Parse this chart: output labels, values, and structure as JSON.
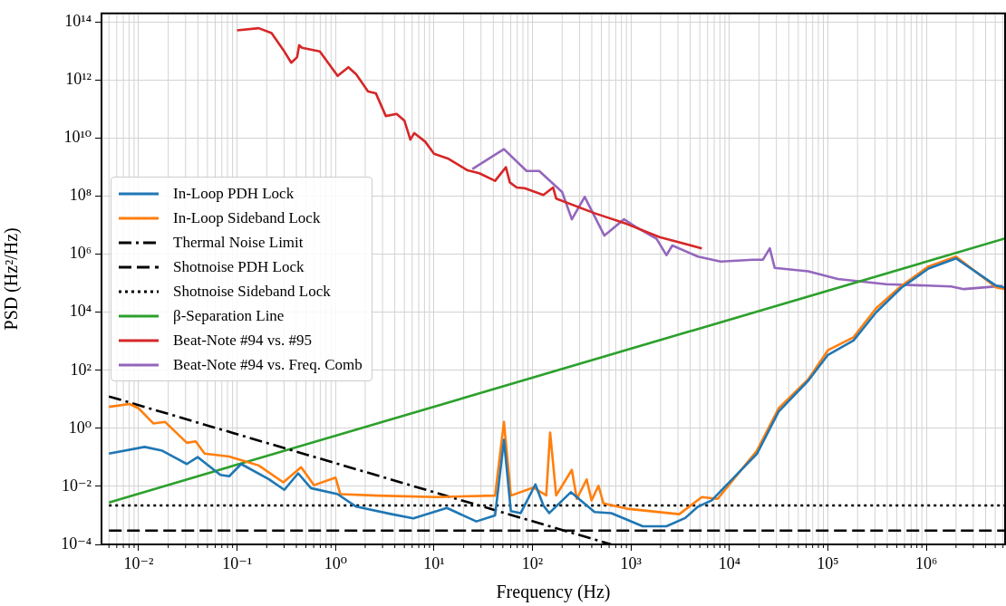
{
  "chart_data": {
    "type": "line",
    "xlabel": "Frequency (Hz)",
    "ylabel": "PSD (Hz²/Hz)",
    "log": "xy",
    "grid": true,
    "legend": "center left",
    "xlim": [
      0.0042,
      6300000.0
    ],
    "ylim": [
      0.0001,
      200000000000000.0
    ],
    "xticks": [
      {
        "value": 0.01,
        "label": "10⁻²"
      },
      {
        "value": 0.1,
        "label": "10⁻¹"
      },
      {
        "value": 1,
        "label": "10⁰"
      },
      {
        "value": 10,
        "label": "10¹"
      },
      {
        "value": 100,
        "label": "10²"
      },
      {
        "value": 1000,
        "label": "10³"
      },
      {
        "value": 10000,
        "label": "10⁴"
      },
      {
        "value": 100000,
        "label": "10⁵"
      },
      {
        "value": 1000000,
        "label": "10⁶"
      }
    ],
    "yticks": [
      {
        "value": 0.0001,
        "label": "10⁻⁴"
      },
      {
        "value": 0.01,
        "label": "10⁻²"
      },
      {
        "value": 1,
        "label": "10⁰"
      },
      {
        "value": 100.0,
        "label": "10²"
      },
      {
        "value": 10000.0,
        "label": "10⁴"
      },
      {
        "value": 1000000.0,
        "label": "10⁶"
      },
      {
        "value": 100000000.0,
        "label": "10⁸"
      },
      {
        "value": 10000000000.0,
        "label": "10¹⁰"
      },
      {
        "value": 1000000000000.0,
        "label": "10¹²"
      },
      {
        "value": 100000000000000.0,
        "label": "10¹⁴"
      }
    ],
    "series": [
      {
        "name": "In-Loop PDH Lock",
        "color": "#1f77b4",
        "x": [
          0.005,
          0.0115,
          0.0174,
          0.0309,
          0.0398,
          0.0676,
          0.0832,
          0.11,
          0.209,
          0.302,
          0.417,
          0.562,
          1.05,
          1.62,
          3.72,
          6.17,
          13.5,
          26.9,
          41.7,
          51.3,
          60.3,
          75.9,
          107,
          129,
          148,
          245,
          427,
          631,
          1320,
          2290,
          3550,
          4790,
          6610,
          19100,
          31600,
          63100,
          100000,
          182000,
          309000,
          562000,
          1050000,
          2000000,
          5100000,
          6300000
        ],
        "values": [
          0.135,
          0.229,
          0.17,
          0.059,
          0.102,
          0.025,
          0.0224,
          0.059,
          0.0178,
          0.0076,
          0.0282,
          0.0087,
          0.0054,
          0.002,
          0.0011,
          0.00079,
          0.0018,
          0.00062,
          0.001,
          0.4,
          0.0014,
          0.0012,
          0.0117,
          0.0022,
          0.0012,
          0.0063,
          0.0013,
          0.0012,
          0.00042,
          0.00042,
          0.00081,
          0.002,
          0.0033,
          0.135,
          3.8,
          44,
          340,
          1070,
          10000,
          72000,
          320000,
          720000,
          83000,
          71000
        ]
      },
      {
        "name": "In-Loop Sideband Lock",
        "color": "#ff7f0e",
        "x": [
          0.005,
          0.0081,
          0.01,
          0.0141,
          0.0186,
          0.0309,
          0.038,
          0.0468,
          0.0832,
          0.166,
          0.295,
          0.447,
          0.603,
          1.0,
          1.12,
          2.63,
          10.7,
          41.7,
          51.3,
          60.3,
          102,
          138,
          151,
          174,
          251,
          282,
          355,
          398,
          468,
          525,
          912,
          3090,
          5250,
          7590,
          19100,
          31600,
          63100,
          100000,
          182000,
          309000,
          562000,
          1050000,
          2000000,
          5100000,
          6300000
        ],
        "values": [
          5.5,
          6.9,
          4.9,
          1.48,
          1.66,
          0.316,
          0.355,
          0.135,
          0.107,
          0.0525,
          0.0138,
          0.0457,
          0.011,
          0.02,
          0.0054,
          0.0048,
          0.0043,
          0.0048,
          1.66,
          0.0048,
          0.0091,
          0.0049,
          0.72,
          0.0049,
          0.037,
          0.0037,
          0.0174,
          0.0033,
          0.0105,
          0.0026,
          0.0017,
          0.0011,
          0.0043,
          0.0037,
          0.174,
          4.9,
          49,
          490,
          1380,
          13800,
          83000,
          380000,
          830000,
          72000,
          63000
        ]
      },
      {
        "name": "Thermal Noise Limit",
        "color": "#000000",
        "line_style": "dashdot",
        "x": [
          0.005,
          630
        ],
        "values": [
          12.6,
          0.0001
        ]
      },
      {
        "name": "Shotnoise PDH Lock",
        "color": "#000000",
        "line_style": "dashed",
        "x": [
          0.005,
          6300000
        ],
        "values": [
          0.0003,
          0.0003
        ]
      },
      {
        "name": "Shotnoise Sideband Lock",
        "color": "#000000",
        "line_style": "dotted",
        "x": [
          0.005,
          6300000
        ],
        "values": [
          0.0022,
          0.0022
        ]
      },
      {
        "name": "β-Separation Line",
        "color": "#2ca02c",
        "x": [
          0.005,
          6300000
        ],
        "values": [
          0.0028,
          3500000
        ]
      },
      {
        "name": "Beat-Note #94 vs. #95",
        "color": "#d62728",
        "x": [
          0.1,
          0.166,
          0.224,
          0.295,
          0.355,
          0.407,
          0.427,
          0.457,
          0.692,
          1.05,
          1.35,
          1.62,
          2.14,
          2.57,
          3.24,
          4.17,
          5.01,
          5.75,
          6.31,
          8.13,
          10,
          13.8,
          21.9,
          28.8,
          41.7,
          53.7,
          58.9,
          69.2,
          83.2,
          129,
          162,
          174,
          427,
          912,
          1950,
          5250
        ],
        "values": [
          52000000000000.0,
          62000000000000.0,
          42000000000000.0,
          11000000000000.0,
          4000000000000.0,
          6200000000000.0,
          16000000000000.0,
          13000000000000.0,
          9800000000000.0,
          1400000000000.0,
          2800000000000.0,
          1600000000000.0,
          410000000000.0,
          350000000000.0,
          58000000000.0,
          69000000000.0,
          40000000000.0,
          8900000000.0,
          15000000000.0,
          7600000000.0,
          2900000000.0,
          2000000000.0,
          780000000.0,
          620000000.0,
          340000000.0,
          1000000000.0,
          300000000.0,
          200000000.0,
          190000000.0,
          110000000.0,
          200000000.0,
          83000000.0,
          26000000.0,
          11000000.0,
          3900000.0,
          1600000.0
        ]
      },
      {
        "name": "Beat-Note #94 vs. Freq. Comb",
        "color": "#9467bd",
        "x": [
          24.5,
          51.3,
          87.1,
          117,
          200,
          251,
          339,
          537,
          851,
          1150,
          1820,
          2290,
          2630,
          4790,
          8130,
          17400,
          21900,
          25700,
          28800,
          63100,
          126000,
          389000,
          1780000,
          2400000,
          5900000
        ],
        "values": [
          870000000.0,
          4200000000.0,
          740000000.0,
          740000000.0,
          140000000.0,
          16000000.0,
          95000000.0,
          4400000.0,
          16000000.0,
          8300000.0,
          3400000.0,
          930000.0,
          2000000.0,
          830000.0,
          560000.0,
          650000.0,
          650000.0,
          1600000.0,
          340000.0,
          260000.0,
          140000.0,
          93000.0,
          78000.0,
          63000.0,
          81000.0
        ]
      }
    ]
  }
}
